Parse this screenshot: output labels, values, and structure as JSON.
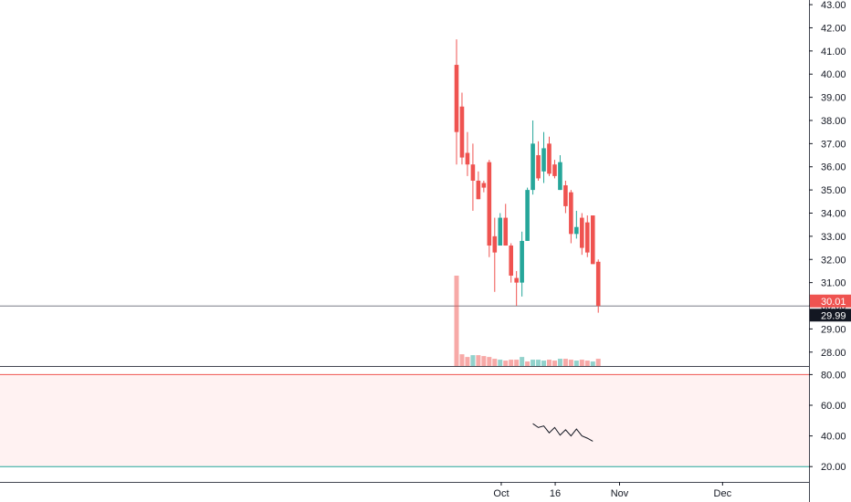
{
  "chart_data": [
    {
      "type": "candlestick",
      "price_axis": {
        "ticks": [
          "28.00",
          "29.00",
          "30.00",
          "31.00",
          "32.00",
          "33.00",
          "34.00",
          "35.00",
          "36.00",
          "37.00",
          "38.00",
          "39.00",
          "40.00",
          "41.00",
          "42.00",
          "43.00"
        ],
        "range": [
          27.4,
          43.2
        ]
      },
      "last_price": {
        "value": 30.01,
        "label": "30.01",
        "color": "#ef5350"
      },
      "reference_line": {
        "value": 29.99,
        "label": "29.99",
        "color": "#131722"
      },
      "up_color": "#26a69a",
      "down_color": "#ef5350",
      "candles": [
        {
          "o": 40.4,
          "h": 41.5,
          "l": 36.1,
          "c": 37.5
        },
        {
          "o": 38.6,
          "h": 39.2,
          "l": 36.1,
          "c": 36.4
        },
        {
          "o": 36.6,
          "h": 37.5,
          "l": 35.6,
          "c": 36.1
        },
        {
          "o": 36.1,
          "h": 37.0,
          "l": 34.1,
          "c": 35.4
        },
        {
          "o": 35.4,
          "h": 35.8,
          "l": 34.6,
          "c": 34.6
        },
        {
          "o": 35.3,
          "h": 35.4,
          "l": 34.9,
          "c": 35.1
        },
        {
          "o": 36.2,
          "h": 36.3,
          "l": 32.1,
          "c": 32.6
        },
        {
          "o": 33.0,
          "h": 33.8,
          "l": 30.6,
          "c": 32.3
        },
        {
          "o": 32.6,
          "h": 34.0,
          "l": 32.6,
          "c": 33.8
        },
        {
          "o": 33.8,
          "h": 34.4,
          "l": 32.6,
          "c": 32.6
        },
        {
          "o": 32.6,
          "h": 32.7,
          "l": 31.0,
          "c": 31.3
        },
        {
          "o": 31.2,
          "h": 31.5,
          "l": 30.0,
          "c": 31.0
        },
        {
          "o": 31.0,
          "h": 33.2,
          "l": 30.4,
          "c": 32.8
        },
        {
          "o": 32.8,
          "h": 35.1,
          "l": 32.8,
          "c": 35.0
        },
        {
          "o": 35.0,
          "h": 38.0,
          "l": 34.8,
          "c": 37.0
        },
        {
          "o": 36.5,
          "h": 37.1,
          "l": 35.4,
          "c": 35.5
        },
        {
          "o": 35.8,
          "h": 37.5,
          "l": 35.3,
          "c": 36.8
        },
        {
          "o": 37.0,
          "h": 37.3,
          "l": 35.6,
          "c": 35.7
        },
        {
          "o": 36.1,
          "h": 36.3,
          "l": 35.5,
          "c": 35.6
        },
        {
          "o": 35.0,
          "h": 36.5,
          "l": 35.0,
          "c": 36.2
        },
        {
          "o": 35.2,
          "h": 35.4,
          "l": 34.0,
          "c": 34.3
        },
        {
          "o": 34.9,
          "h": 35.0,
          "l": 32.7,
          "c": 33.1
        },
        {
          "o": 33.1,
          "h": 34.1,
          "l": 32.9,
          "c": 33.4
        },
        {
          "o": 33.8,
          "h": 34.0,
          "l": 32.2,
          "c": 32.5
        },
        {
          "o": 33.6,
          "h": 33.9,
          "l": 32.1,
          "c": 32.3
        },
        {
          "o": 33.9,
          "h": 33.9,
          "l": 31.8,
          "c": 31.8
        },
        {
          "o": 31.9,
          "h": 32.0,
          "l": 29.7,
          "c": 30.0
        }
      ],
      "volume": [
        1.0,
        0.13,
        0.1,
        0.12,
        0.12,
        0.11,
        0.1,
        0.08,
        0.07,
        0.06,
        0.07,
        0.07,
        0.1,
        0.05,
        0.07,
        0.07,
        0.06,
        0.07,
        0.06,
        0.08,
        0.08,
        0.07,
        0.06,
        0.07,
        0.06,
        0.05,
        0.08
      ],
      "volume_colors": [
        "down",
        "down",
        "down",
        "up",
        "down",
        "down",
        "down",
        "down",
        "up",
        "down",
        "down",
        "down",
        "up",
        "down",
        "up",
        "up",
        "up",
        "down",
        "down",
        "up",
        "down",
        "down",
        "up",
        "down",
        "down",
        "up",
        "down"
      ]
    },
    {
      "type": "line",
      "name": "oscillator",
      "y_axis": {
        "ticks": [
          "20.00",
          "40.00",
          "60.00",
          "80.00"
        ],
        "range": [
          10,
          85
        ]
      },
      "upper_band": {
        "value": 80,
        "color": "#ef5350"
      },
      "lower_band": {
        "value": 20,
        "color": "#26a69a"
      },
      "band_fill": "#fff2f2",
      "line_color": "#131722",
      "values": [
        {
          "i": 14,
          "v": 48.0
        },
        {
          "i": 15,
          "v": 45.5
        },
        {
          "i": 16,
          "v": 46.5
        },
        {
          "i": 17,
          "v": 42.0
        },
        {
          "i": 18,
          "v": 45.5
        },
        {
          "i": 19,
          "v": 40.5
        },
        {
          "i": 20,
          "v": 44.0
        },
        {
          "i": 21,
          "v": 40.0
        },
        {
          "i": 22,
          "v": 44.5
        },
        {
          "i": 23,
          "v": 40.0
        },
        {
          "i": 24,
          "v": 38.5
        },
        {
          "i": 25,
          "v": 36.5
        }
      ]
    }
  ],
  "time_axis": {
    "labels": [
      {
        "text": "Oct",
        "i": 8.2
      },
      {
        "text": "16",
        "i": 18.1
      },
      {
        "text": "Nov",
        "i": 29.9
      },
      {
        "text": "Dec",
        "i": 48.8
      }
    ]
  }
}
